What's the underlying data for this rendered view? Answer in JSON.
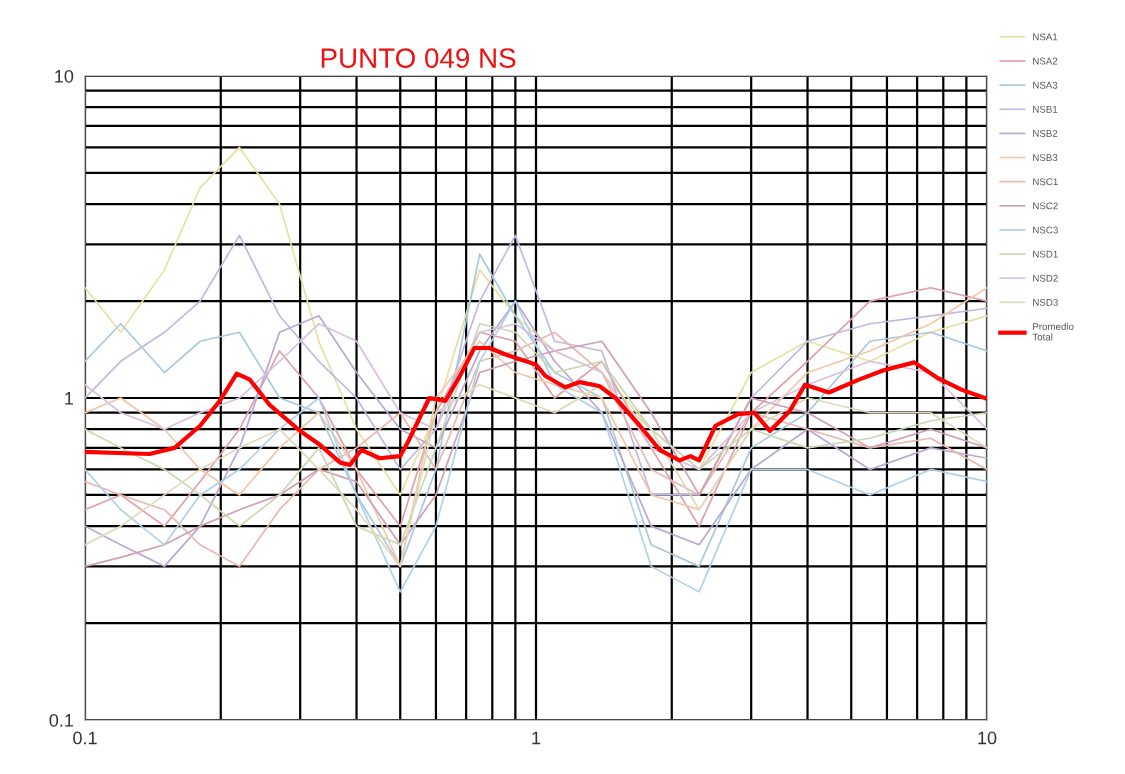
{
  "chart_data": {
    "type": "line",
    "title": "PUNTO 049 NS",
    "log": "xy",
    "grid": true,
    "legend": "right",
    "marker": "none",
    "line_style": "solid",
    "xlim": [
      0.1,
      10
    ],
    "ylim": [
      0.1,
      10
    ],
    "xticks": [
      0.1,
      {
        "value": 0.2,
        "label": null
      },
      {
        "value": 0.3,
        "label": null
      },
      {
        "value": 0.4,
        "label": null
      },
      {
        "value": 0.5,
        "label": null
      },
      {
        "value": 0.6,
        "label": null
      },
      {
        "value": 0.7,
        "label": null
      },
      {
        "value": 0.8,
        "label": null
      },
      {
        "value": 0.9,
        "label": null
      },
      1,
      {
        "value": 2,
        "label": null
      },
      {
        "value": 3,
        "label": null
      },
      {
        "value": 4,
        "label": null
      },
      {
        "value": 5,
        "label": null
      },
      {
        "value": 6,
        "label": null
      },
      {
        "value": 7,
        "label": null
      },
      {
        "value": 8,
        "label": null
      },
      {
        "value": 9,
        "label": null
      },
      10
    ],
    "yticks": [
      0.1,
      {
        "value": 0.2,
        "label": null
      },
      {
        "value": 0.3,
        "label": null
      },
      {
        "value": 0.4,
        "label": null
      },
      {
        "value": 0.5,
        "label": null
      },
      {
        "value": 0.6,
        "label": null
      },
      {
        "value": 0.7,
        "label": null
      },
      {
        "value": 0.8,
        "label": null
      },
      {
        "value": 0.9,
        "label": null
      },
      1,
      {
        "value": 2,
        "label": null
      },
      {
        "value": 3,
        "label": null
      },
      {
        "value": 4,
        "label": null
      },
      {
        "value": 5,
        "label": null
      },
      {
        "value": 6,
        "label": null
      },
      {
        "value": 7,
        "label": null
      },
      {
        "value": 8,
        "label": null
      },
      {
        "value": 9,
        "label": null
      },
      10
    ],
    "x": [
      0.1,
      0.12,
      0.15,
      0.18,
      0.22,
      0.27,
      0.33,
      0.4,
      0.5,
      0.6,
      0.75,
      0.9,
      1.1,
      1.4,
      1.8,
      2.3,
      3,
      4,
      5.5,
      7.5,
      10
    ],
    "series": [
      {
        "name": "NSA1",
        "color": "#e8e0a0",
        "values": [
          2.2,
          1.6,
          2.5,
          4.5,
          6,
          4,
          1.5,
          0.8,
          0.5,
          0.9,
          2.5,
          1.8,
          1.4,
          1.2,
          0.8,
          0.6,
          1.2,
          1.5,
          1.3,
          1.6,
          1.8
        ]
      },
      {
        "name": "NSA2",
        "color": "#e0a0a8",
        "values": [
          0.45,
          0.5,
          0.4,
          0.55,
          0.8,
          1.4,
          1.0,
          0.6,
          0.4,
          0.9,
          1.6,
          1.5,
          1.0,
          1.3,
          0.7,
          0.4,
          0.9,
          1.3,
          2.0,
          2.2,
          2.0
        ]
      },
      {
        "name": "NSA3",
        "color": "#a8c8e0",
        "values": [
          1.3,
          1.7,
          1.2,
          1.5,
          1.6,
          1.0,
          0.9,
          0.5,
          0.3,
          0.6,
          2.8,
          1.8,
          1.2,
          1.0,
          0.35,
          0.3,
          0.7,
          0.9,
          1.5,
          1.6,
          1.4
        ]
      },
      {
        "name": "NSB1",
        "color": "#c0b8e0",
        "values": [
          1.0,
          1.3,
          1.6,
          2.0,
          3.2,
          1.8,
          1.3,
          1.0,
          0.6,
          0.8,
          2.0,
          3.2,
          1.5,
          1.4,
          0.5,
          0.5,
          1.0,
          1.5,
          1.7,
          1.8,
          1.9
        ]
      },
      {
        "name": "NSB2",
        "color": "#b8a8d0",
        "values": [
          0.4,
          0.35,
          0.3,
          0.4,
          0.7,
          1.6,
          1.8,
          1.2,
          0.8,
          0.7,
          1.4,
          2.0,
          1.3,
          0.9,
          0.4,
          0.35,
          0.6,
          0.8,
          0.6,
          0.7,
          0.65
        ]
      },
      {
        "name": "NSB3",
        "color": "#f0c8a8",
        "values": [
          0.9,
          1.0,
          0.8,
          0.6,
          0.5,
          0.7,
          0.9,
          0.6,
          0.3,
          1.0,
          1.5,
          1.2,
          1.1,
          1.0,
          0.5,
          0.45,
          0.8,
          1.2,
          1.4,
          1.7,
          2.2
        ]
      },
      {
        "name": "NSC1",
        "color": "#e8b8b0",
        "values": [
          0.55,
          0.5,
          0.45,
          0.35,
          0.3,
          0.45,
          0.6,
          0.7,
          0.9,
          0.6,
          1.3,
          1.4,
          1.6,
          1.2,
          0.6,
          0.5,
          0.9,
          0.8,
          0.7,
          0.75,
          0.6
        ]
      },
      {
        "name": "NSC2",
        "color": "#d0a0b0",
        "values": [
          0.3,
          0.32,
          0.35,
          0.4,
          0.45,
          0.5,
          0.6,
          0.55,
          0.35,
          0.5,
          1.2,
          1.3,
          1.4,
          1.5,
          0.9,
          0.5,
          1.0,
          0.9,
          0.7,
          0.8,
          0.7
        ]
      },
      {
        "name": "NSC3",
        "color": "#b0d0e8",
        "values": [
          0.6,
          0.45,
          0.35,
          0.5,
          0.6,
          0.8,
          1.0,
          0.5,
          0.25,
          0.4,
          1.3,
          2.0,
          1.1,
          0.9,
          0.3,
          0.25,
          0.6,
          0.6,
          0.5,
          0.6,
          0.55
        ]
      },
      {
        "name": "NSD1",
        "color": "#c8d8b0",
        "values": [
          0.8,
          0.7,
          0.6,
          0.5,
          0.4,
          0.5,
          0.7,
          0.4,
          0.35,
          0.7,
          1.7,
          1.6,
          1.2,
          1.3,
          0.8,
          0.6,
          0.8,
          0.7,
          0.75,
          0.85,
          0.9
        ]
      },
      {
        "name": "NSD2",
        "color": "#d8c0e0",
        "values": [
          1.1,
          0.9,
          0.8,
          0.9,
          1.0,
          1.3,
          1.7,
          1.5,
          0.9,
          0.8,
          1.6,
          1.7,
          1.4,
          1.2,
          0.7,
          0.6,
          0.9,
          1.1,
          1.3,
          1.2,
          0.8
        ]
      },
      {
        "name": "NSD3",
        "color": "#e0d8b8",
        "values": [
          0.35,
          0.4,
          0.5,
          0.6,
          0.7,
          0.8,
          0.6,
          0.45,
          0.3,
          0.9,
          1.1,
          1.0,
          0.9,
          1.1,
          0.8,
          0.45,
          0.8,
          1.0,
          0.9,
          0.9,
          0.7
        ]
      },
      {
        "name": "Promedio\nTotal",
        "color": "#ff0000",
        "x": [
          0.1,
          0.139,
          0.158,
          0.18,
          0.199,
          0.217,
          0.232,
          0.257,
          0.3,
          0.33,
          0.368,
          0.387,
          0.41,
          0.45,
          0.5,
          0.52,
          0.58,
          0.63,
          0.68,
          0.73,
          0.79,
          0.85,
          0.92,
          1.0,
          1.05,
          1.16,
          1.25,
          1.38,
          1.5,
          1.7,
          1.88,
          2.08,
          2.2,
          2.3,
          2.5,
          2.8,
          3.05,
          3.3,
          3.65,
          3.95,
          4.46,
          5.2,
          5.9,
          6.9,
          7.8,
          8.8,
          9.9
        ],
        "values": [
          0.68,
          0.67,
          0.7,
          0.82,
          0.98,
          1.19,
          1.14,
          0.95,
          0.79,
          0.72,
          0.63,
          0.62,
          0.69,
          0.65,
          0.66,
          0.73,
          1.0,
          0.98,
          1.18,
          1.43,
          1.43,
          1.37,
          1.32,
          1.27,
          1.17,
          1.08,
          1.12,
          1.09,
          1.0,
          0.82,
          0.69,
          0.64,
          0.66,
          0.64,
          0.82,
          0.89,
          0.9,
          0.79,
          0.91,
          1.1,
          1.04,
          1.14,
          1.22,
          1.29,
          1.15,
          1.06,
          1.0
        ]
      }
    ]
  }
}
